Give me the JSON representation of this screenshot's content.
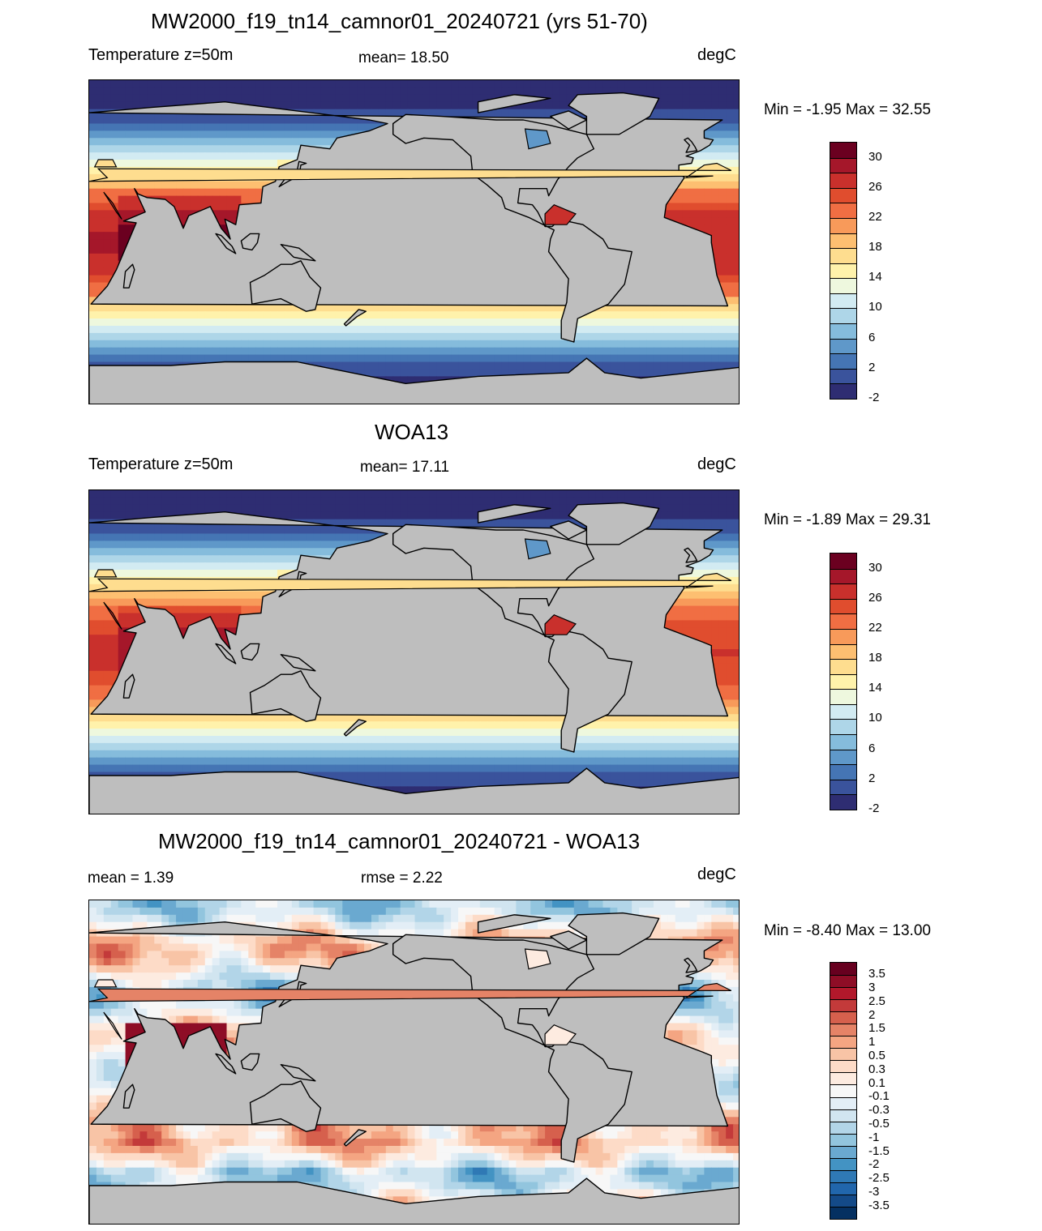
{
  "panels": [
    {
      "title": "MW2000_f19_tn14_camnor01_20240721 (yrs 51-70)",
      "left_label": "Temperature z=50m",
      "center_label": "mean=  18.50",
      "units": "degC",
      "minmax": "Min =  -1.95 Max =  32.55",
      "field": "model",
      "colorbar": {
        "colors": [
          "#6b0020",
          "#a5172a",
          "#c9302c",
          "#e04d2e",
          "#f06e43",
          "#f89a5a",
          "#fdbf71",
          "#fedd8f",
          "#fff2ab",
          "#eef8de",
          "#d2ebf2",
          "#aed6e8",
          "#85bcdc",
          "#5f98c9",
          "#4575b4",
          "#3a539c",
          "#2e2d72"
        ],
        "labels": [
          "30",
          "26",
          "22",
          "18",
          "14",
          "10",
          "6",
          "2",
          "-2"
        ]
      }
    },
    {
      "title": "WOA13",
      "left_label": "Temperature z=50m",
      "center_label": "mean=  17.11",
      "units": "degC",
      "minmax": "Min =  -1.89 Max =  29.31",
      "field": "obs",
      "colorbar": {
        "colors": [
          "#6b0020",
          "#a5172a",
          "#c9302c",
          "#e04d2e",
          "#f06e43",
          "#f89a5a",
          "#fdbf71",
          "#fedd8f",
          "#fff2ab",
          "#eef8de",
          "#d2ebf2",
          "#aed6e8",
          "#85bcdc",
          "#5f98c9",
          "#4575b4",
          "#3a539c",
          "#2e2d72"
        ],
        "labels": [
          "30",
          "26",
          "22",
          "18",
          "14",
          "10",
          "6",
          "2",
          "-2"
        ]
      }
    },
    {
      "title": "MW2000_f19_tn14_camnor01_20240721 - WOA13",
      "left_label": "mean =   1.39",
      "center_label": "rmse =   2.22",
      "units": "degC",
      "minmax": "Min =  -8.40 Max =  13.00",
      "field": "diff",
      "colorbar": {
        "colors": [
          "#67001f",
          "#8e0d26",
          "#b2182b",
          "#c33a3a",
          "#d6604d",
          "#e58367",
          "#f4a582",
          "#f8c4a6",
          "#fddbc7",
          "#fdebe0",
          "#f7f7f7",
          "#e3eef6",
          "#d1e5f0",
          "#b2d5e8",
          "#92c5de",
          "#6aa9d0",
          "#4393c3",
          "#2f79b5",
          "#2166ac",
          "#144a88",
          "#053061"
        ],
        "labels": [
          "3.5",
          "3",
          "2.5",
          "2",
          "1.5",
          "1",
          "0.5",
          "0.3",
          "0.1",
          "-0.1",
          "-0.3",
          "-0.5",
          "-1",
          "-1.5",
          "-2",
          "-2.5",
          "-3",
          "-3.5"
        ]
      }
    }
  ]
}
